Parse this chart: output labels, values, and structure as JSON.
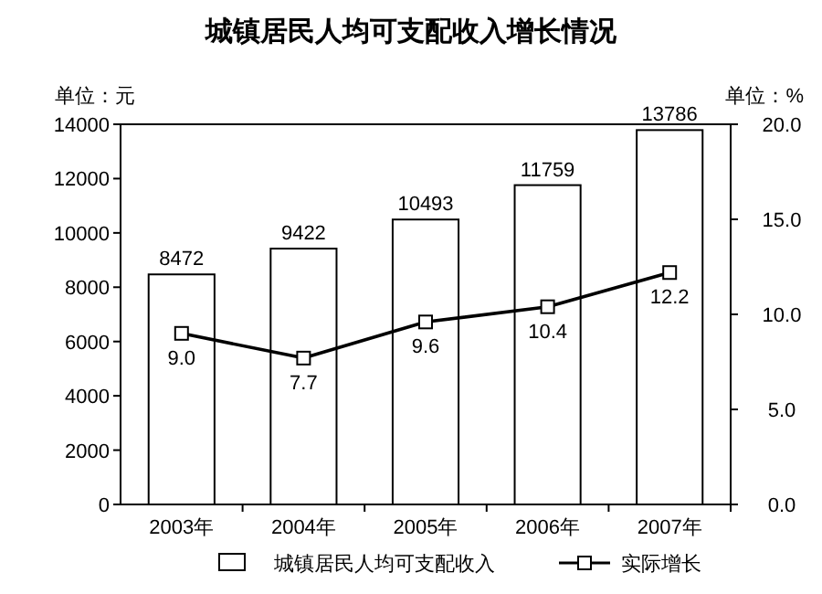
{
  "chart_data": {
    "type": "bar",
    "title": "城镇居民人均可支配收入增长情况",
    "ylabel": "单位：元",
    "y2label": "单位：%",
    "categories": [
      "2003年",
      "2004年",
      "2005年",
      "2006年",
      "2007年"
    ],
    "series": [
      {
        "name": "城镇居民人均可支配收入",
        "color": "#ffffff",
        "values": [
          8472,
          9422,
          10493,
          11759,
          13786
        ]
      },
      {
        "name": "实际增长",
        "type": "line",
        "axis": "y2",
        "color": "#000000",
        "marker": "square",
        "values": [
          9.0,
          7.7,
          9.6,
          10.4,
          12.2
        ],
        "value_labels": [
          "9.0",
          "7.7",
          "9.6",
          "10.4",
          "12.2"
        ]
      }
    ],
    "data_labels": true,
    "ylim": [
      0,
      14000
    ],
    "yticks": [
      0,
      2000,
      4000,
      6000,
      8000,
      10000,
      12000,
      14000
    ],
    "y2lim": [
      0,
      20
    ],
    "y2ticks": [
      {
        "value": 0,
        "label": "0.0"
      },
      {
        "value": 5,
        "label": "5.0"
      },
      {
        "value": 10,
        "label": "10.0"
      },
      {
        "value": 15,
        "label": "15.0"
      },
      {
        "value": 20,
        "label": "20.0"
      }
    ],
    "legend": "bottom",
    "grid": false
  }
}
